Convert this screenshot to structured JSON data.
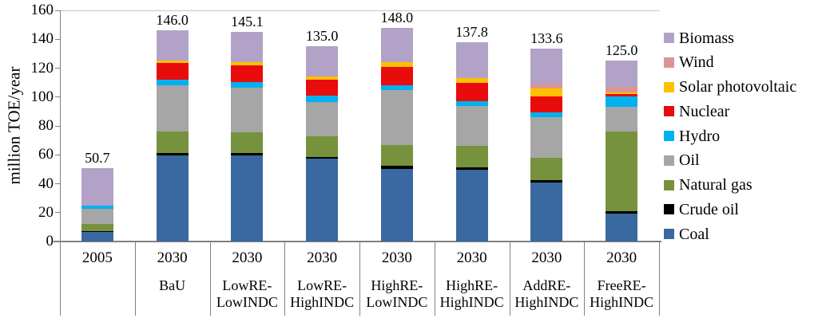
{
  "chart_data": {
    "type": "bar",
    "stacked": true,
    "title": "",
    "xlabel": "",
    "ylabel": "million TOE/year",
    "ylim": [
      0,
      160
    ],
    "yticks": [
      0,
      20,
      40,
      60,
      80,
      100,
      120,
      140,
      160
    ],
    "grid": false,
    "legend_position": "right",
    "categories": [
      {
        "year": "2005",
        "scenario": ""
      },
      {
        "year": "2030",
        "scenario": "BaU"
      },
      {
        "year": "2030",
        "scenario": "LowRE-LowINDC"
      },
      {
        "year": "2030",
        "scenario": "LowRE-HighINDC"
      },
      {
        "year": "2030",
        "scenario": "HighRE-LowINDC"
      },
      {
        "year": "2030",
        "scenario": "HighRE-HighINDC"
      },
      {
        "year": "2030",
        "scenario": "AddRE-HighINDC"
      },
      {
        "year": "2030",
        "scenario": "FreeRE-HighINDC"
      }
    ],
    "total_labels": [
      "50.7",
      "146.0",
      "145.1",
      "135.0",
      "148.0",
      "137.8",
      "133.6",
      "125.0"
    ],
    "series": [
      {
        "name": "Coal",
        "color": "#3a68a0",
        "values": [
          6.9,
          59.6,
          59.6,
          57.2,
          50.4,
          49.8,
          41.0,
          19.1
        ]
      },
      {
        "name": "Crude oil",
        "color": "#000000",
        "values": [
          0.2,
          1.8,
          1.8,
          1.5,
          1.8,
          1.5,
          1.4,
          1.9
        ]
      },
      {
        "name": "Natural gas",
        "color": "#76923c",
        "values": [
          5.2,
          14.7,
          14.2,
          14.1,
          14.7,
          15.1,
          15.7,
          55.1
        ]
      },
      {
        "name": "Oil",
        "color": "#a6a6a6",
        "values": [
          10.3,
          31.9,
          30.9,
          24.0,
          37.8,
          27.2,
          27.8,
          17.0
        ]
      },
      {
        "name": "Hydro",
        "color": "#00b0f0",
        "values": [
          2.3,
          4.0,
          4.0,
          4.1,
          3.6,
          3.7,
          3.7,
          7.2
        ]
      },
      {
        "name": "Nuclear",
        "color": "#e80c0c",
        "values": [
          0,
          11.4,
          11.6,
          11.0,
          12.5,
          12.6,
          10.7,
          1.7
        ]
      },
      {
        "name": "Solar photovoltaic",
        "color": "#ffc000",
        "values": [
          0,
          2.1,
          1.9,
          2.2,
          3.2,
          3.0,
          5.5,
          1.4
        ]
      },
      {
        "name": "Wind",
        "color": "#d99694",
        "values": [
          0,
          0,
          0,
          0,
          0,
          0,
          3.7,
          3.7
        ]
      },
      {
        "name": "Biomass",
        "color": "#b2a2c7",
        "values": [
          25.8,
          20.5,
          21.1,
          20.8,
          24.0,
          24.9,
          24.1,
          17.9
        ]
      }
    ],
    "legend": [
      "Biomass",
      "Wind",
      "Solar photovoltaic",
      "Nuclear",
      "Hydro",
      "Oil",
      "Natural gas",
      "Crude oil",
      "Coal"
    ]
  }
}
